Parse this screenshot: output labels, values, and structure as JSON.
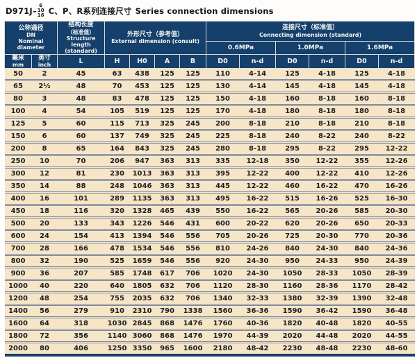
{
  "title": {
    "model": "D971J",
    "dash": "–",
    "pressures": [
      "6",
      "10",
      "16"
    ],
    "text_cn": "C、P、R系列连接尺寸",
    "text_en": "Series connection dimensions"
  },
  "header": {
    "nominal_diameter": {
      "cn": "公称通径",
      "code": "DN",
      "en1": "Nominal",
      "en2": "diameter"
    },
    "structure_length": {
      "cn": "结构长度",
      "cn2": "（标准值）",
      "en1": "Structure length",
      "en2": "(standard)"
    },
    "external_dimension": {
      "cn": "外形尺寸（参考值）",
      "en": "External dimension (consult)"
    },
    "connecting_dimension": {
      "cn": "连接尺寸（标准值）",
      "en": "Connecting dimension (standard)"
    },
    "pressure_groups": [
      "0.6MPa",
      "1.0MPa",
      "1.6MPa"
    ],
    "subcolumns": {
      "mm_cn": "毫米",
      "mm_en": "mm",
      "inch_cn": "英寸",
      "inch_en": "inch",
      "L": "L",
      "H": "H",
      "H0": "H0",
      "A": "A",
      "B": "B",
      "D0": "D0",
      "nd": "n-d"
    }
  },
  "rows": [
    [
      "50",
      "2",
      "45",
      "63",
      "438",
      "125",
      "125",
      "110",
      "4-14",
      "125",
      "4-18",
      "125",
      "4-18"
    ],
    [
      "65",
      "2½",
      "48",
      "70",
      "453",
      "125",
      "125",
      "130",
      "4-14",
      "145",
      "4-18",
      "145",
      "4-18"
    ],
    [
      "80",
      "3",
      "48",
      "83",
      "478",
      "125",
      "125",
      "150",
      "4-18",
      "160",
      "8-18",
      "160",
      "8-18"
    ],
    [
      "100",
      "4",
      "54",
      "105",
      "519",
      "125",
      "125",
      "170",
      "4-18",
      "180",
      "8-18",
      "180",
      "8-18"
    ],
    [
      "125",
      "5",
      "60",
      "115",
      "713",
      "325",
      "245",
      "200",
      "8-18",
      "210",
      "8-18",
      "210",
      "8-18"
    ],
    [
      "150",
      "6",
      "60",
      "137",
      "749",
      "325",
      "245",
      "225",
      "8-18",
      "240",
      "8-22",
      "240",
      "8-22"
    ],
    [
      "200",
      "8",
      "65",
      "164",
      "843",
      "325",
      "245",
      "280",
      "8-18",
      "295",
      "8-22",
      "295",
      "12-22"
    ],
    [
      "250",
      "10",
      "70",
      "206",
      "947",
      "363",
      "313",
      "335",
      "12-18",
      "350",
      "12-22",
      "355",
      "12-26"
    ],
    [
      "300",
      "12",
      "81",
      "230",
      "1013",
      "363",
      "313",
      "395",
      "12-22",
      "400",
      "12-22",
      "410",
      "12-26"
    ],
    [
      "350",
      "14",
      "88",
      "248",
      "1046",
      "363",
      "313",
      "445",
      "12-22",
      "460",
      "16-22",
      "470",
      "16-26"
    ],
    [
      "400",
      "16",
      "101",
      "289",
      "1135",
      "363",
      "313",
      "495",
      "16-22",
      "515",
      "16-26",
      "525",
      "16-30"
    ],
    [
      "450",
      "18",
      "116",
      "320",
      "1328",
      "465",
      "439",
      "550",
      "16-22",
      "565",
      "20-26",
      "585",
      "20-30"
    ],
    [
      "500",
      "20",
      "133",
      "343",
      "1226",
      "546",
      "431",
      "600",
      "20-22",
      "620",
      "20-26",
      "650",
      "20-33"
    ],
    [
      "600",
      "24",
      "154",
      "413",
      "1394",
      "546",
      "556",
      "705",
      "20-26",
      "725",
      "20-30",
      "770",
      "20-36"
    ],
    [
      "700",
      "28",
      "166",
      "478",
      "1534",
      "546",
      "556",
      "810",
      "24-26",
      "840",
      "24-30",
      "840",
      "24-36"
    ],
    [
      "800",
      "32",
      "190",
      "525",
      "1659",
      "546",
      "556",
      "920",
      "24-30",
      "950",
      "24-33",
      "950",
      "24-39"
    ],
    [
      "900",
      "36",
      "207",
      "585",
      "1748",
      "617",
      "706",
      "1020",
      "24-30",
      "1050",
      "28-33",
      "1050",
      "28-39"
    ],
    [
      "1000",
      "40",
      "220",
      "640",
      "1805",
      "632",
      "706",
      "1120",
      "28-30",
      "1160",
      "28-36",
      "1170",
      "28-42"
    ],
    [
      "1200",
      "48",
      "254",
      "755",
      "2035",
      "632",
      "706",
      "1340",
      "32-33",
      "1380",
      "32-39",
      "1390",
      "32-48"
    ],
    [
      "1400",
      "56",
      "279",
      "910",
      "2310",
      "790",
      "1338",
      "1560",
      "36-36",
      "1590",
      "36-42",
      "1590",
      "36-48"
    ],
    [
      "1600",
      "64",
      "318",
      "1030",
      "2845",
      "868",
      "1476",
      "1760",
      "40-36",
      "1820",
      "40-48",
      "1820",
      "40-55"
    ],
    [
      "1800",
      "72",
      "356",
      "1140",
      "3060",
      "868",
      "1476",
      "1970",
      "44-39",
      "2020",
      "44-48",
      "2020",
      "44-55"
    ],
    [
      "2000",
      "80",
      "406",
      "1250",
      "3350",
      "965",
      "1600",
      "2180",
      "48-42",
      "2230",
      "48-48",
      "2230",
      "48-60"
    ]
  ]
}
